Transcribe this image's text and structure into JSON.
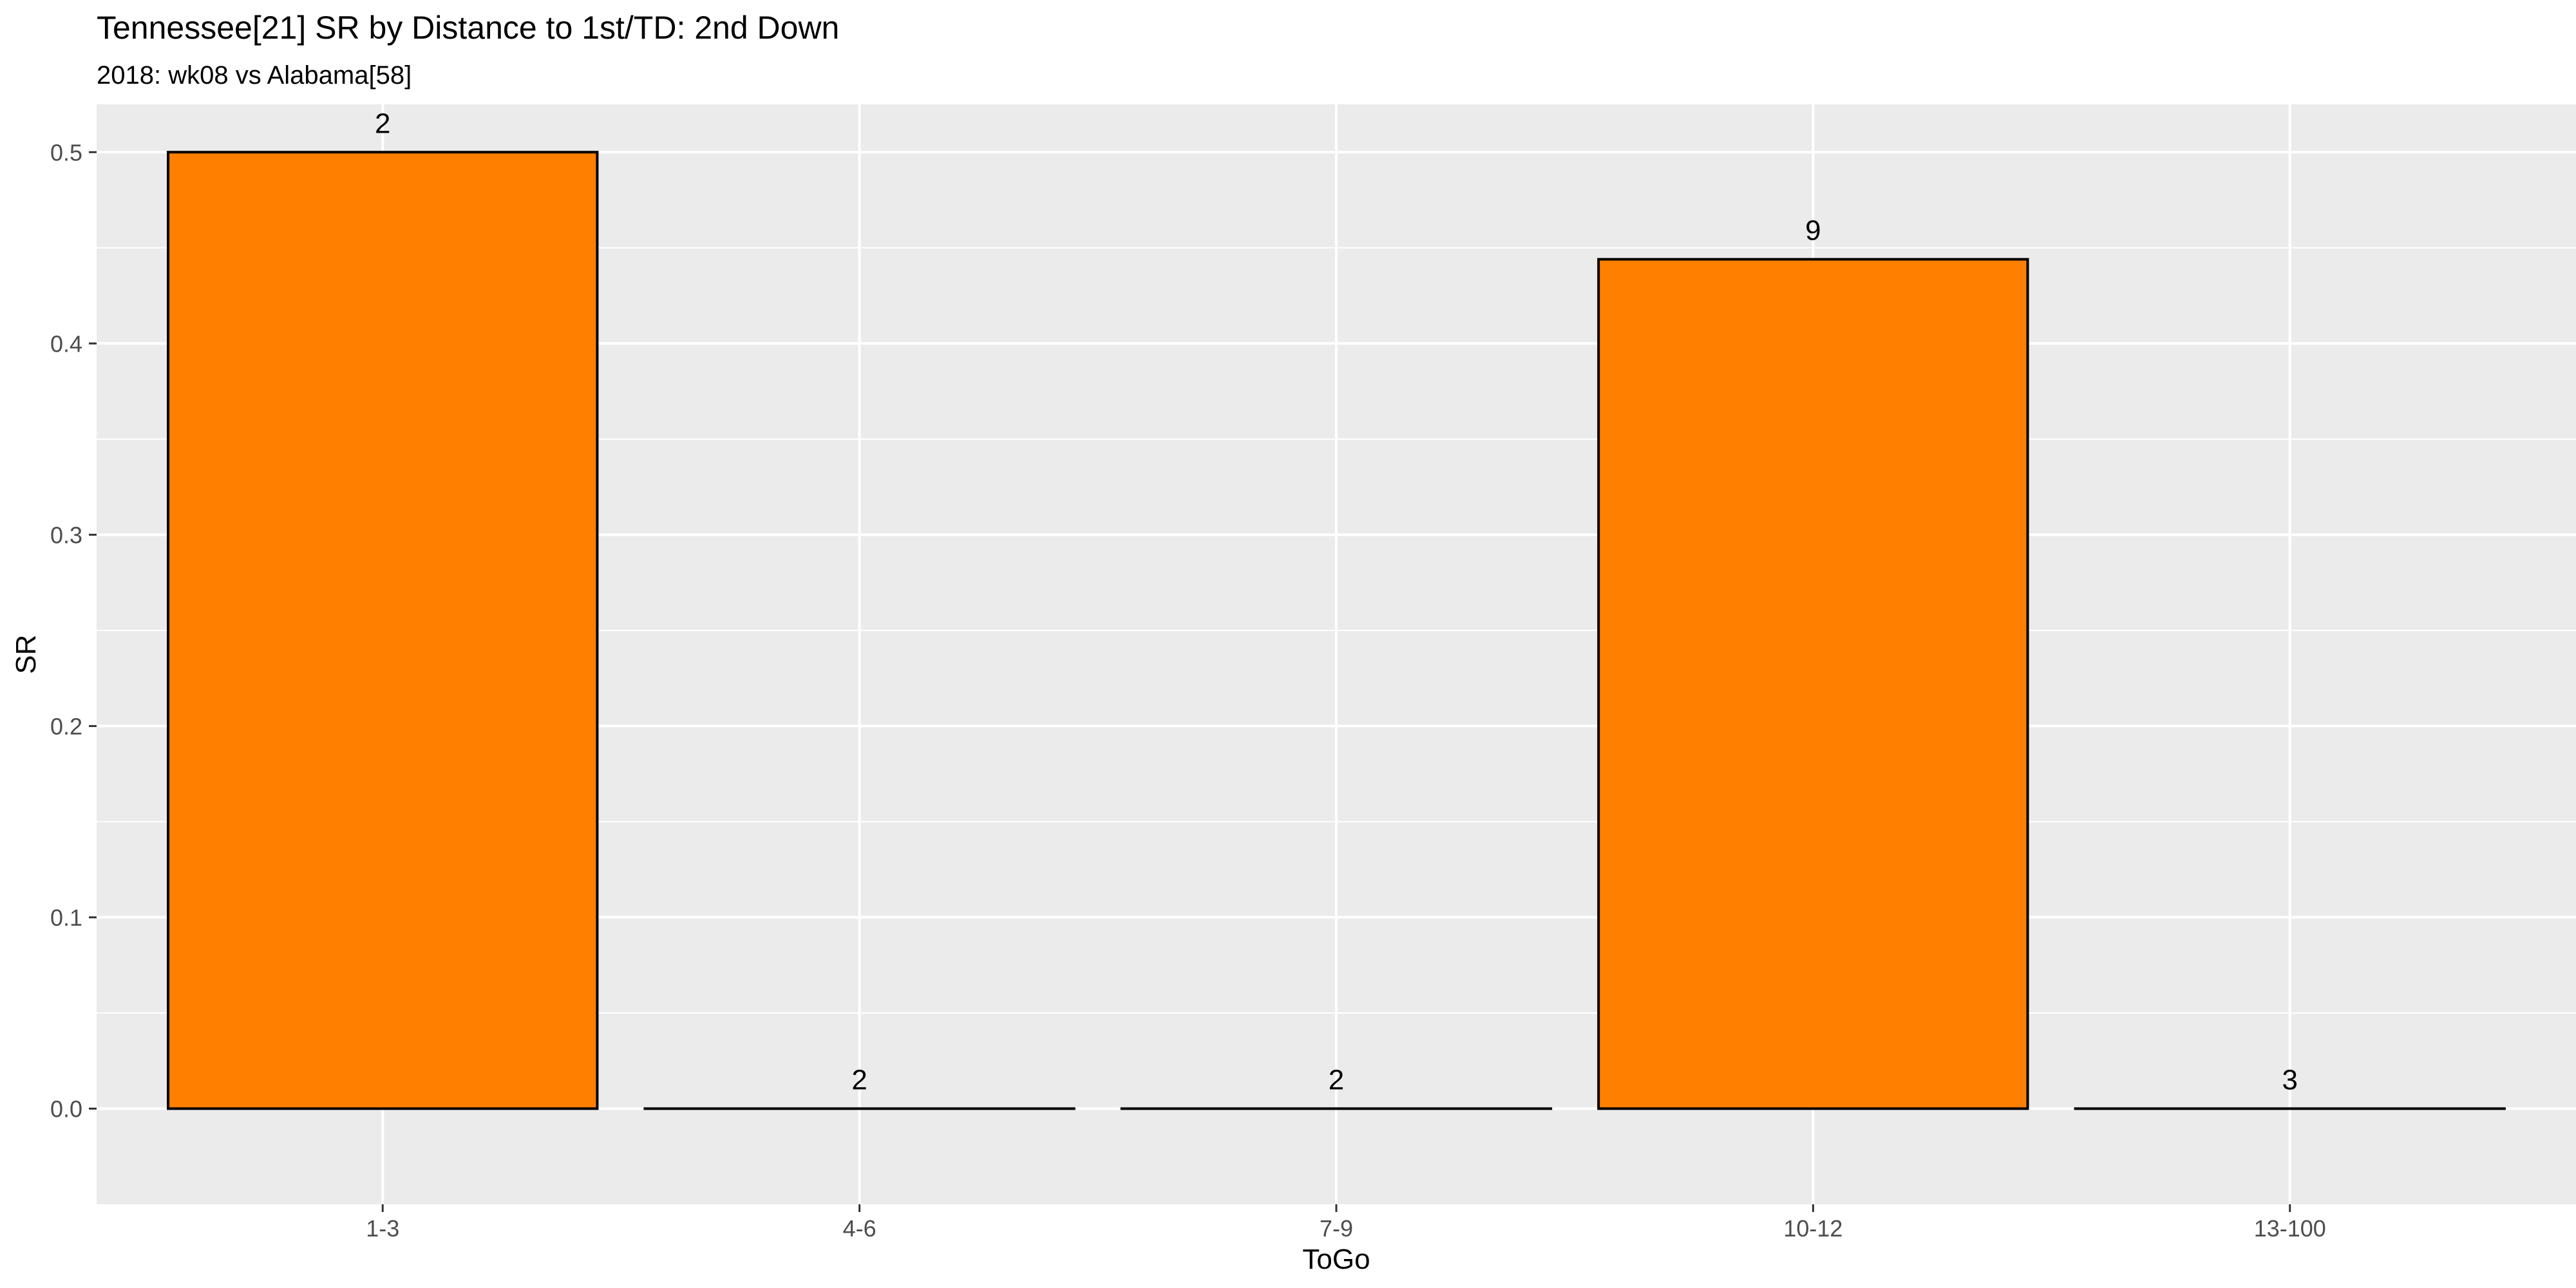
{
  "chart_data": {
    "type": "bar",
    "title": "Tennessee[21] SR by Distance to 1st/TD: 2nd Down",
    "subtitle": "2018: wk08 vs Alabama[58]",
    "xlabel": "ToGo",
    "ylabel": "SR",
    "categories": [
      "1-3",
      "4-6",
      "7-9",
      "10-12",
      "13-100"
    ],
    "values": [
      0.5,
      0.0,
      0.0,
      0.444,
      0.0
    ],
    "counts": [
      "2",
      "2",
      "2",
      "9",
      "3"
    ],
    "ylim": [
      -0.05,
      0.525
    ],
    "yticks": [
      0.0,
      0.1,
      0.2,
      0.3,
      0.4,
      0.5
    ],
    "ytick_labels": [
      "0.0",
      "0.1",
      "0.2",
      "0.3",
      "0.4",
      "0.5"
    ],
    "grid": true,
    "colors": {
      "bar_fill": "#FF8000",
      "bar_stroke": "#000000",
      "panel": "#EBEBEB",
      "grid": "#FFFFFF",
      "text": "#000000",
      "tick_text": "#4D4D4D",
      "tick_mark": "#333333"
    }
  }
}
